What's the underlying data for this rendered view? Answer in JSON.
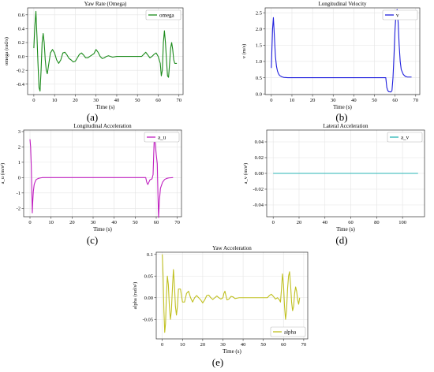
{
  "chart_data": [
    {
      "id": "a",
      "caption": "(a)",
      "type": "line",
      "title": "Yaw Rate (Omega)",
      "xlabel": "Time (s)",
      "ylabel": "omega (rad/s)",
      "xlim": [
        -3,
        72
      ],
      "ylim": [
        -0.55,
        0.7
      ],
      "xticks": [
        0,
        10,
        20,
        30,
        40,
        50,
        60,
        70
      ],
      "yticks": [
        -0.4,
        -0.2,
        0.0,
        0.2,
        0.4,
        0.6
      ],
      "ytick_labels": [
        "-0.4",
        "-0.2",
        "0.0",
        "0.2",
        "0.4",
        "0.6"
      ],
      "legend": "top-right",
      "grid": true,
      "series": [
        {
          "name": "omega",
          "color": "#1a8a1a",
          "points": [
            [
              0,
              0.12
            ],
            [
              0.5,
              0.45
            ],
            [
              1,
              0.65
            ],
            [
              1.5,
              0.3
            ],
            [
              2,
              -0.1
            ],
            [
              2.5,
              -0.45
            ],
            [
              3,
              -0.5
            ],
            [
              3.5,
              -0.2
            ],
            [
              4,
              0.2
            ],
            [
              4.5,
              0.33
            ],
            [
              5,
              0.2
            ],
            [
              5.5,
              -0.05
            ],
            [
              6,
              -0.2
            ],
            [
              6.5,
              -0.25
            ],
            [
              7,
              -0.15
            ],
            [
              8,
              0.05
            ],
            [
              9,
              0.1
            ],
            [
              10,
              0.05
            ],
            [
              11,
              -0.05
            ],
            [
              12,
              -0.1
            ],
            [
              13,
              -0.05
            ],
            [
              14,
              0.05
            ],
            [
              15,
              0.06
            ],
            [
              16,
              0.02
            ],
            [
              17,
              -0.03
            ],
            [
              18,
              -0.05
            ],
            [
              19,
              -0.08
            ],
            [
              20,
              -0.07
            ],
            [
              21,
              -0.02
            ],
            [
              22,
              0.03
            ],
            [
              23,
              0.05
            ],
            [
              24,
              0.02
            ],
            [
              25,
              -0.02
            ],
            [
              26,
              -0.02
            ],
            [
              27,
              0.0
            ],
            [
              28,
              0.02
            ],
            [
              29,
              0.04
            ],
            [
              30,
              0.1
            ],
            [
              31,
              0.06
            ],
            [
              32,
              0.0
            ],
            [
              33,
              -0.03
            ],
            [
              34,
              -0.02
            ],
            [
              35,
              0.0
            ],
            [
              36,
              0.01
            ],
            [
              37,
              0.0
            ],
            [
              38,
              -0.01
            ],
            [
              40,
              0.0
            ],
            [
              45,
              0.0
            ],
            [
              50,
              0.0
            ],
            [
              52,
              0.0
            ],
            [
              53,
              0.03
            ],
            [
              54,
              0.06
            ],
            [
              55,
              0.02
            ],
            [
              56,
              -0.02
            ],
            [
              57,
              0.0
            ],
            [
              58,
              0.03
            ],
            [
              59,
              0.05
            ],
            [
              60,
              0.0
            ],
            [
              61,
              -0.1
            ],
            [
              61.5,
              -0.28
            ],
            [
              62,
              -0.2
            ],
            [
              62.5,
              0.2
            ],
            [
              63,
              0.37
            ],
            [
              63.5,
              0.2
            ],
            [
              64,
              -0.05
            ],
            [
              64.5,
              -0.28
            ],
            [
              65,
              -0.3
            ],
            [
              65.5,
              -0.1
            ],
            [
              66,
              0.12
            ],
            [
              66.5,
              0.2
            ],
            [
              67,
              0.1
            ],
            [
              67.5,
              -0.05
            ],
            [
              68,
              -0.1
            ],
            [
              69,
              -0.1
            ]
          ]
        }
      ]
    },
    {
      "id": "b",
      "caption": "(b)",
      "type": "line",
      "title": "Longitudinal Velocity",
      "xlabel": "Time (s)",
      "ylabel": "v (m/s)",
      "xlim": [
        -3,
        72
      ],
      "ylim": [
        -0.02,
        2.65
      ],
      "xticks": [
        0,
        10,
        20,
        30,
        40,
        50,
        60,
        70
      ],
      "yticks": [
        0.0,
        0.5,
        1.0,
        1.5,
        2.0,
        2.5
      ],
      "ytick_labels": [
        "0.0",
        "0.5",
        "1.0",
        "1.5",
        "2.0",
        "2.5"
      ],
      "legend": "top-right",
      "grid": true,
      "series": [
        {
          "name": "v",
          "color": "#1f1fdd",
          "points": [
            [
              0,
              0.8
            ],
            [
              0.3,
              1.4
            ],
            [
              0.6,
              2.0
            ],
            [
              1,
              2.35
            ],
            [
              1.3,
              2.0
            ],
            [
              1.7,
              1.5
            ],
            [
              2,
              1.15
            ],
            [
              2.5,
              0.85
            ],
            [
              3,
              0.7
            ],
            [
              3.5,
              0.62
            ],
            [
              4,
              0.57
            ],
            [
              5,
              0.53
            ],
            [
              6,
              0.51
            ],
            [
              8,
              0.5
            ],
            [
              20,
              0.5
            ],
            [
              40,
              0.5
            ],
            [
              55,
              0.5
            ],
            [
              55.5,
              0.5
            ],
            [
              56,
              0.2
            ],
            [
              56.5,
              0.1
            ],
            [
              57,
              0.07
            ],
            [
              58,
              0.06
            ],
            [
              58.5,
              0.1
            ],
            [
              59,
              0.5
            ],
            [
              59.5,
              1.2
            ],
            [
              60,
              2.0
            ],
            [
              60.5,
              2.5
            ],
            [
              61,
              2.6
            ],
            [
              61.5,
              2.2
            ],
            [
              62,
              1.5
            ],
            [
              62.5,
              1.0
            ],
            [
              63,
              0.75
            ],
            [
              64,
              0.6
            ],
            [
              65,
              0.54
            ],
            [
              66,
              0.52
            ],
            [
              68,
              0.52
            ]
          ]
        }
      ]
    },
    {
      "id": "c",
      "caption": "(c)",
      "type": "line",
      "title": "Longitudinal Acceleration",
      "xlabel": "Time (s)",
      "ylabel": "a_u (m/s²)",
      "xlim": [
        -3,
        72
      ],
      "ylim": [
        -2.55,
        3.1
      ],
      "xticks": [
        0,
        10,
        20,
        30,
        40,
        50,
        60,
        70
      ],
      "yticks": [
        -2,
        -1,
        0,
        1,
        2,
        3
      ],
      "ytick_labels": [
        "-2",
        "-1",
        "0",
        "1",
        "2",
        "3"
      ],
      "legend": "top-right",
      "grid": true,
      "series": [
        {
          "name": "a_u",
          "color": "#c020c0",
          "points": [
            [
              0,
              2.5
            ],
            [
              0.3,
              2.0
            ],
            [
              0.6,
              0.8
            ],
            [
              0.9,
              -1.0
            ],
            [
              1.1,
              -2.3
            ],
            [
              1.3,
              -1.6
            ],
            [
              1.6,
              -0.9
            ],
            [
              2,
              -0.45
            ],
            [
              2.5,
              -0.25
            ],
            [
              3,
              -0.12
            ],
            [
              4,
              -0.05
            ],
            [
              5,
              -0.02
            ],
            [
              6,
              0.0
            ],
            [
              20,
              0.0
            ],
            [
              40,
              0.0
            ],
            [
              55,
              0.0
            ],
            [
              55.5,
              -0.3
            ],
            [
              56,
              -0.45
            ],
            [
              56.5,
              -0.3
            ],
            [
              57,
              -0.15
            ],
            [
              58,
              -0.08
            ],
            [
              58.5,
              0.2
            ],
            [
              58.8,
              1.5
            ],
            [
              59.1,
              2.8
            ],
            [
              59.5,
              2.2
            ],
            [
              60,
              1.5
            ],
            [
              60.5,
              0.9
            ],
            [
              60.8,
              -1.0
            ],
            [
              61.1,
              -2.6
            ],
            [
              61.5,
              -1.5
            ],
            [
              62,
              -0.7
            ],
            [
              63,
              -0.3
            ],
            [
              64,
              -0.12
            ],
            [
              65,
              -0.05
            ],
            [
              66,
              -0.02
            ],
            [
              68,
              0.0
            ]
          ]
        }
      ]
    },
    {
      "id": "d",
      "caption": "(d)",
      "type": "line",
      "title": "Lateral Acceleration",
      "xlabel": "Time (s)",
      "ylabel": "a_v (m/s²)",
      "xlim": [
        -5,
        117
      ],
      "ylim": [
        -0.055,
        0.055
      ],
      "xticks": [
        0,
        20,
        40,
        60,
        80,
        100
      ],
      "yticks": [
        -0.04,
        -0.02,
        0.0,
        0.02,
        0.04
      ],
      "ytick_labels": [
        "-0.04",
        "-0.02",
        "0.00",
        "0.02",
        "0.04"
      ],
      "legend": "top-right",
      "grid": true,
      "series": [
        {
          "name": "a_v",
          "color": "#2ab5b5",
          "points": [
            [
              0,
              0.0
            ],
            [
              112,
              0.0
            ]
          ]
        }
      ]
    },
    {
      "id": "e",
      "caption": "(e)",
      "type": "line",
      "title": "Yaw Acceleration",
      "xlabel": "Time (s)",
      "ylabel": "alpha (rad/s²)",
      "xlim": [
        -3,
        72
      ],
      "ylim": [
        -0.095,
        0.105
      ],
      "xticks": [
        0,
        10,
        20,
        30,
        40,
        50,
        60,
        70
      ],
      "yticks": [
        -0.05,
        0.0,
        0.05,
        0.1
      ],
      "ytick_labels": [
        "-0.05",
        "0.00",
        "0.05",
        "0.1"
      ],
      "legend": "bottom-right",
      "grid": true,
      "series": [
        {
          "name": "alpha",
          "color": "#c0c020",
          "points": [
            [
              0,
              0.1
            ],
            [
              0.4,
              0.05
            ],
            [
              0.8,
              -0.03
            ],
            [
              1.2,
              -0.08
            ],
            [
              1.6,
              -0.06
            ],
            [
              2,
              0.0
            ],
            [
              2.5,
              0.05
            ],
            [
              3,
              0.03
            ],
            [
              3.5,
              -0.02
            ],
            [
              4,
              -0.05
            ],
            [
              4.5,
              -0.03
            ],
            [
              5,
              0.02
            ],
            [
              5.5,
              0.065
            ],
            [
              6,
              0.03
            ],
            [
              6.5,
              -0.02
            ],
            [
              7,
              -0.04
            ],
            [
              7.5,
              -0.02
            ],
            [
              8,
              0.02
            ],
            [
              9,
              0.02
            ],
            [
              10,
              -0.01
            ],
            [
              11,
              -0.01
            ],
            [
              12,
              0.01
            ],
            [
              13,
              0.015
            ],
            [
              14,
              0.0
            ],
            [
              15,
              -0.01
            ],
            [
              16,
              0.0
            ],
            [
              17,
              0.005
            ],
            [
              18,
              0.0
            ],
            [
              19,
              -0.005
            ],
            [
              20,
              -0.012
            ],
            [
              21,
              -0.005
            ],
            [
              22,
              0.005
            ],
            [
              23,
              0.006
            ],
            [
              24,
              0.0
            ],
            [
              25,
              -0.004
            ],
            [
              26,
              0.0
            ],
            [
              27,
              0.004
            ],
            [
              28,
              0.0
            ],
            [
              29,
              -0.003
            ],
            [
              30,
              0.0
            ],
            [
              30.5,
              0.01
            ],
            [
              31,
              0.015
            ],
            [
              31.5,
              0.005
            ],
            [
              32,
              -0.005
            ],
            [
              33,
              -0.003
            ],
            [
              34,
              0.003
            ],
            [
              35,
              0.002
            ],
            [
              36,
              -0.002
            ],
            [
              38,
              0.0
            ],
            [
              50,
              0.0
            ],
            [
              52,
              0.0
            ],
            [
              53,
              0.005
            ],
            [
              54,
              0.008
            ],
            [
              55,
              0.003
            ],
            [
              56,
              -0.003
            ],
            [
              57,
              0.0
            ],
            [
              58,
              -0.005
            ],
            [
              58.5,
              -0.01
            ],
            [
              59,
              0.02
            ],
            [
              59.5,
              0.055
            ],
            [
              60,
              0.03
            ],
            [
              60.5,
              -0.02
            ],
            [
              61,
              -0.05
            ],
            [
              61.5,
              -0.03
            ],
            [
              62,
              0.02
            ],
            [
              62.5,
              0.05
            ],
            [
              63,
              0.06
            ],
            [
              63.5,
              0.03
            ],
            [
              64,
              -0.01
            ],
            [
              64.5,
              -0.03
            ],
            [
              65,
              -0.02
            ],
            [
              65.5,
              0.01
            ],
            [
              66,
              0.025
            ],
            [
              66.5,
              0.015
            ],
            [
              67,
              -0.005
            ],
            [
              67.5,
              -0.015
            ],
            [
              68,
              0.0
            ]
          ]
        }
      ]
    }
  ]
}
